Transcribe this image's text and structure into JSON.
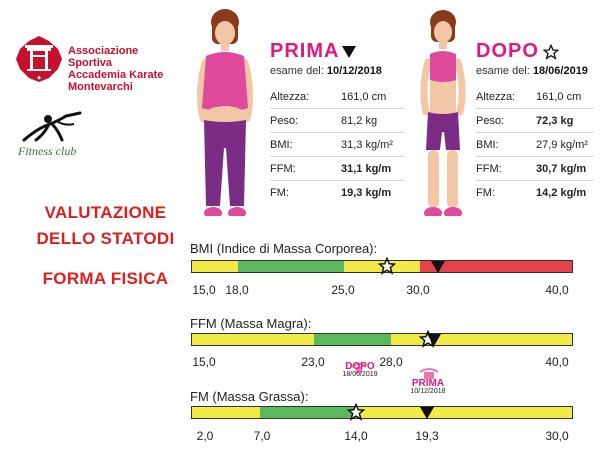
{
  "logo": {
    "line1": "Associazione Sportiva",
    "line2": "Accademia Karate",
    "line3": "Montevarchi",
    "fitness": "Fitness club"
  },
  "title": {
    "line1": "VALUTAZIONE",
    "line2": "DELLO STATODI",
    "line3": "FORMA  FISICA"
  },
  "before": {
    "title": "PRIMA",
    "exam_label": "esame del:",
    "exam_date": "10/12/2018",
    "rows": [
      {
        "label": "Altezza:",
        "value": "161,0 cm"
      },
      {
        "label": "Peso:",
        "value": "81,2 kg"
      },
      {
        "label": "BMI:",
        "value": "31,3 kg/m²"
      },
      {
        "label": "FFM:",
        "value": "31,1 kg/m"
      },
      {
        "label": "FM:",
        "value": "19,3 kg/m"
      }
    ]
  },
  "after": {
    "title": "DOPO",
    "exam_label": "esame del:",
    "exam_date": "18/06/2019",
    "rows": [
      {
        "label": "Altezza:",
        "value": "161,0 cm"
      },
      {
        "label": "Peso:",
        "value": "72,3 kg"
      },
      {
        "label": "BMI:",
        "value": "27,9 kg/m²"
      },
      {
        "label": "FFM:",
        "value": "30,7 kg/m"
      },
      {
        "label": "FM:",
        "value": "14,2 kg/m"
      }
    ]
  },
  "scales": {
    "bmi": {
      "label": "BMI (Indice di Massa Corporea):",
      "ticks": [
        "15,0",
        "18,0",
        "25,0",
        "30,0",
        "40,0"
      ],
      "dopo_value": 27.9,
      "prima_value": 31.3
    },
    "ffm": {
      "label": "FFM (Massa Magra):",
      "ticks": [
        "15,0",
        "23,0",
        "28,0",
        "40,0"
      ],
      "dopo_value": 30.7,
      "prima_value": 31.1
    },
    "fm": {
      "label": "FM (Massa Grassa):",
      "ticks": [
        "2,0",
        "7,0",
        "14,0",
        "19,3",
        "30,0"
      ],
      "dopo_value": 14.2,
      "prima_value": 19.3,
      "dopo_title": "DOPO",
      "dopo_date": "18/06/2019",
      "prima_title": "PRIMA",
      "prima_date": "10/12/2018"
    }
  },
  "colors": {
    "accent": "#e0197d",
    "title_red": "#e01e1e",
    "yellow": "#f2ea46",
    "green": "#5cb85c",
    "red": "#e6404a",
    "skin": "#f3c7a6",
    "hair": "#8a3b1c",
    "purple": "#7b2d86",
    "pink": "#e04a9a"
  }
}
